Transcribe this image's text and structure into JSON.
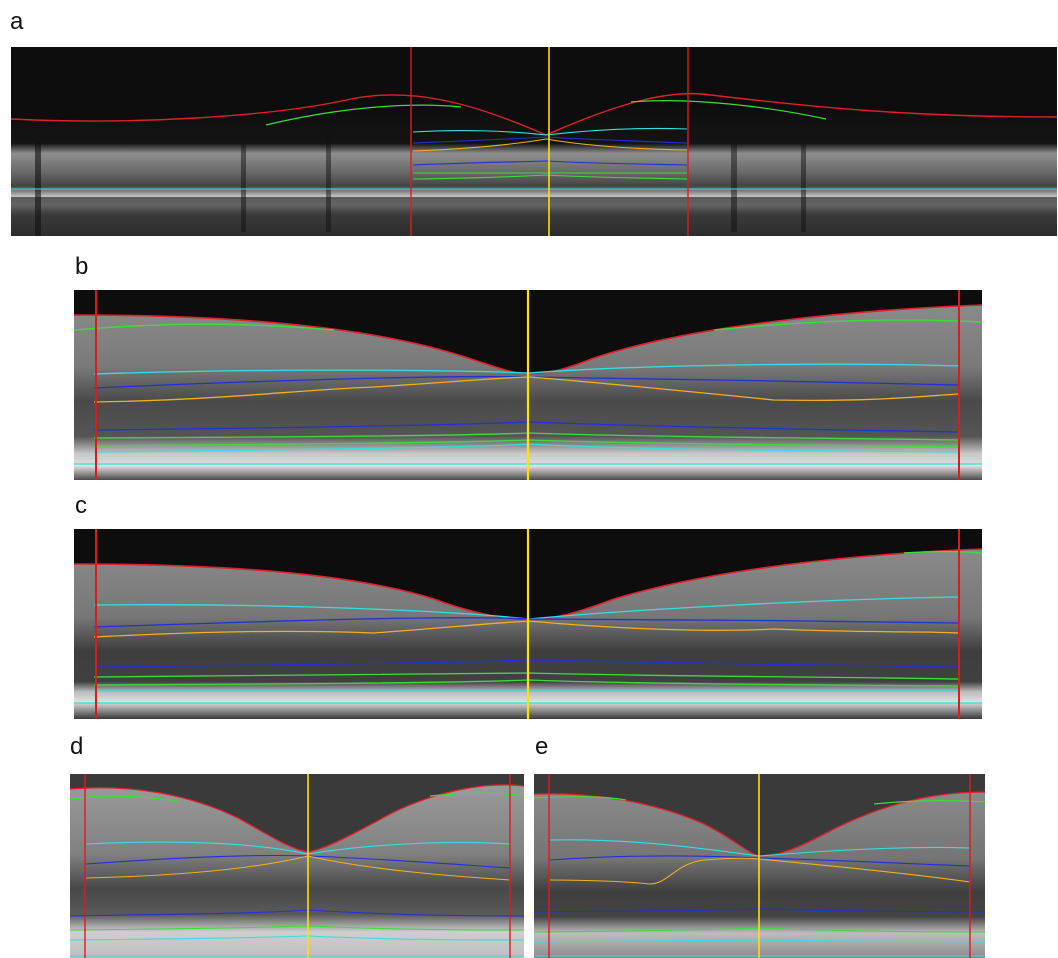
{
  "figure": {
    "panels": [
      {
        "id": "a",
        "label": "a"
      },
      {
        "id": "b",
        "label": "b"
      },
      {
        "id": "c",
        "label": "c"
      },
      {
        "id": "d",
        "label": "d"
      },
      {
        "id": "e",
        "label": "e"
      }
    ]
  },
  "colors": {
    "background": "#ffffff",
    "boundary_red": "#e0202a",
    "boundary_green": "#3ddc3d",
    "boundary_cyan": "#33e0e0",
    "boundary_blue": "#2230d8",
    "boundary_orange": "#f0b020",
    "center_marker_yellow": "#ffe000",
    "region_marker_red": "#e01a1a"
  }
}
